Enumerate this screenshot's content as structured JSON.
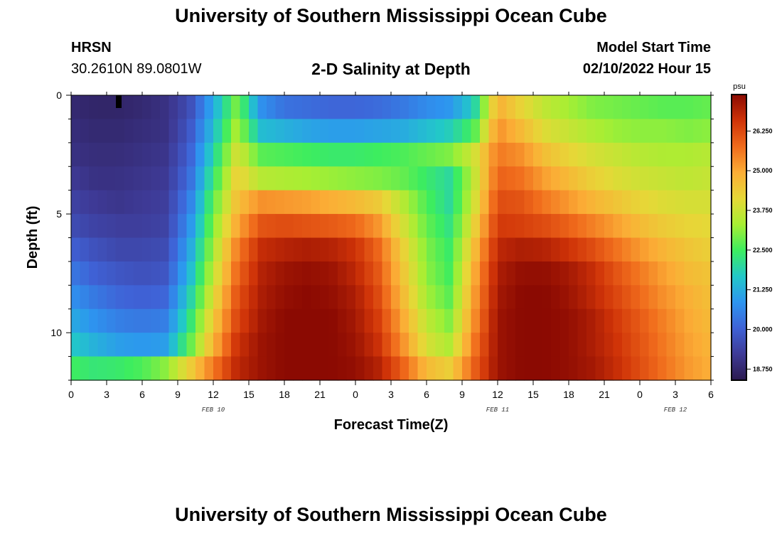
{
  "header": {
    "title": "University of Southern Mississippi Ocean Cube",
    "station": "HRSN",
    "coords": "30.2610N  89.0801W",
    "plot_title": "2-D Salinity at Depth",
    "model_start_label": "Model Start Time",
    "model_start_value": "02/10/2022 Hour 15"
  },
  "footer": {
    "title": "University of Southern Mississippi Ocean Cube"
  },
  "chart_data": {
    "type": "heatmap",
    "title": "2-D Salinity at Depth",
    "xlabel": "Forecast Time(Z)",
    "ylabel": "Depth (ft)",
    "x_tick_labels": [
      "0",
      "3",
      "6",
      "9",
      "12",
      "15",
      "18",
      "21",
      "0",
      "3",
      "6",
      "9",
      "12",
      "15",
      "18",
      "21",
      "0",
      "3",
      "6"
    ],
    "x_range_hours": [
      0,
      54
    ],
    "date_labels": [
      {
        "text": "FEB 10",
        "hour": 12
      },
      {
        "text": "FEB 11",
        "hour": 36
      },
      {
        "text": "FEB 12",
        "hour": 51
      }
    ],
    "y_tick_labels": [
      "0",
      "5",
      "10"
    ],
    "y_range_ft": [
      0,
      12
    ],
    "colorbar": {
      "unit": "psu",
      "tick_labels": [
        "18.750",
        "20.000",
        "21.250",
        "22.500",
        "23.750",
        "25.000",
        "26.250"
      ],
      "range": [
        18.4,
        27.4
      ],
      "colors": [
        "#2b1a4f",
        "#3e3a96",
        "#3f62d6",
        "#2d95f0",
        "#22c8c8",
        "#3ded5f",
        "#a8ee33",
        "#e6d837",
        "#fbad36",
        "#f06b1c",
        "#cf3308",
        "#8b0a02"
      ]
    },
    "rows_depth_ft": [
      0.5,
      1.5,
      2.5,
      3.5,
      4.5,
      5.5,
      6.5,
      7.5,
      8.5,
      9.5,
      10.5,
      11.5
    ],
    "columns_hour": [
      0,
      2,
      4,
      6,
      8,
      10,
      12,
      14,
      16,
      18,
      20,
      22,
      24,
      26,
      28,
      30,
      32,
      34,
      36,
      38,
      40,
      42,
      44,
      46,
      48,
      50,
      52,
      54
    ],
    "values_psu": [
      [
        18.8,
        18.7,
        18.7,
        18.8,
        19.0,
        19.6,
        21.2,
        23.0,
        20.8,
        20.3,
        20.2,
        20.1,
        20.1,
        20.2,
        20.4,
        20.7,
        20.9,
        21.8,
        24.9,
        24.2,
        23.6,
        23.3,
        23.0,
        22.9,
        22.8,
        22.7,
        22.7,
        22.8
      ],
      [
        18.9,
        18.8,
        18.8,
        18.9,
        19.0,
        19.8,
        21.5,
        23.4,
        21.5,
        21.3,
        21.1,
        21.0,
        21.0,
        21.1,
        21.2,
        21.5,
        21.8,
        22.6,
        25.3,
        24.7,
        24.0,
        23.7,
        23.4,
        23.2,
        23.1,
        23.1,
        23.0,
        23.1
      ],
      [
        19.0,
        18.9,
        18.9,
        19.0,
        19.1,
        20.0,
        21.9,
        23.9,
        22.7,
        22.6,
        22.5,
        22.4,
        22.4,
        22.5,
        22.6,
        22.8,
        23.0,
        23.8,
        25.6,
        25.3,
        24.6,
        24.2,
        23.9,
        23.7,
        23.5,
        23.4,
        23.4,
        23.5
      ],
      [
        19.2,
        19.0,
        19.0,
        19.1,
        19.2,
        20.2,
        22.3,
        24.3,
        23.5,
        23.4,
        23.3,
        23.2,
        23.1,
        23.0,
        22.8,
        22.4,
        22.0,
        23.6,
        25.9,
        25.7,
        25.1,
        24.7,
        24.3,
        24.0,
        23.8,
        23.7,
        23.6,
        23.7
      ],
      [
        19.4,
        19.2,
        19.1,
        19.2,
        19.3,
        20.5,
        22.7,
        24.6,
        25.3,
        25.2,
        25.1,
        24.9,
        24.7,
        24.4,
        23.5,
        22.6,
        22.0,
        23.8,
        26.2,
        26.1,
        25.6,
        25.2,
        24.8,
        24.5,
        24.2,
        24.0,
        23.9,
        23.9
      ],
      [
        19.6,
        19.4,
        19.3,
        19.3,
        19.4,
        20.8,
        23.0,
        25.0,
        26.1,
        26.2,
        26.1,
        26.0,
        25.8,
        25.2,
        23.9,
        22.8,
        22.2,
        24.2,
        26.5,
        26.4,
        26.2,
        25.9,
        25.5,
        25.1,
        24.7,
        24.4,
        24.2,
        24.1
      ],
      [
        20.0,
        19.7,
        19.5,
        19.5,
        19.6,
        21.1,
        23.3,
        25.5,
        26.7,
        26.9,
        27.0,
        26.9,
        26.6,
        25.8,
        24.3,
        23.0,
        22.4,
        24.6,
        26.8,
        27.0,
        26.9,
        26.6,
        26.2,
        25.7,
        25.2,
        24.8,
        24.5,
        24.3
      ],
      [
        20.4,
        20.0,
        19.8,
        19.7,
        19.8,
        21.4,
        23.6,
        25.8,
        26.9,
        27.2,
        27.3,
        27.2,
        26.8,
        26.0,
        24.5,
        23.1,
        22.5,
        24.9,
        27.0,
        27.3,
        27.3,
        27.1,
        26.7,
        26.1,
        25.6,
        25.1,
        24.7,
        24.5
      ],
      [
        20.8,
        20.4,
        20.1,
        20.0,
        20.1,
        21.8,
        24.0,
        26.1,
        27.0,
        27.3,
        27.4,
        27.3,
        27.0,
        26.2,
        24.7,
        23.3,
        22.7,
        25.1,
        27.1,
        27.4,
        27.4,
        27.2,
        26.8,
        26.3,
        25.8,
        25.3,
        24.9,
        24.6
      ],
      [
        21.2,
        20.8,
        20.5,
        20.4,
        20.5,
        22.2,
        24.4,
        26.3,
        27.1,
        27.4,
        27.4,
        27.4,
        27.1,
        26.4,
        25.0,
        23.6,
        23.0,
        25.3,
        27.2,
        27.4,
        27.4,
        27.3,
        27.0,
        26.5,
        26.0,
        25.5,
        25.0,
        24.7
      ],
      [
        21.7,
        21.3,
        21.0,
        20.9,
        21.0,
        22.7,
        24.8,
        26.6,
        27.2,
        27.4,
        27.4,
        27.4,
        27.2,
        26.6,
        25.3,
        23.9,
        23.4,
        25.6,
        27.2,
        27.4,
        27.4,
        27.3,
        27.0,
        26.6,
        26.1,
        25.6,
        25.1,
        24.8
      ],
      [
        22.5,
        22.3,
        22.4,
        22.6,
        23.1,
        24.3,
        25.6,
        26.8,
        27.2,
        27.4,
        27.4,
        27.4,
        27.3,
        26.9,
        25.9,
        24.7,
        24.3,
        25.9,
        27.2,
        27.4,
        27.4,
        27.3,
        27.1,
        26.7,
        26.2,
        25.7,
        25.2,
        24.9
      ]
    ]
  }
}
